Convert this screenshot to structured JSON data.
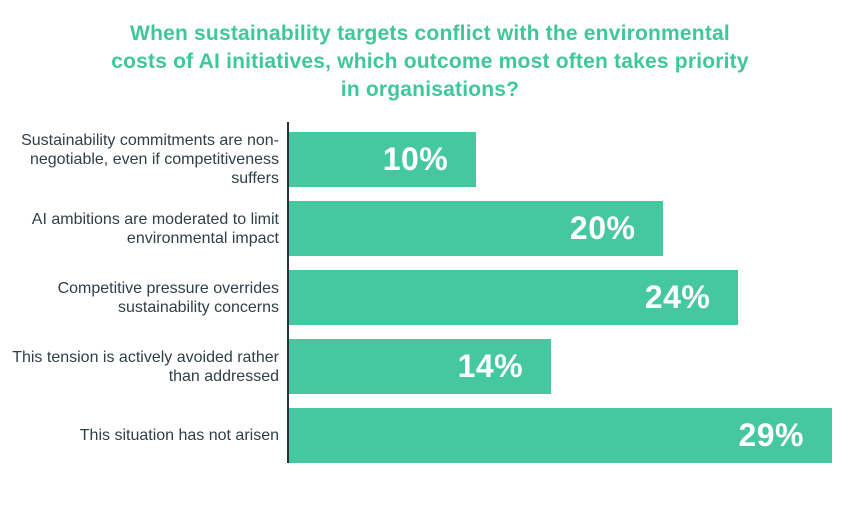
{
  "title": "When sustainability targets conflict with the environmental costs of AI initiatives, which outcome most often takes priority in organisations?",
  "title_lines": [
    "When sustainability targets conflict with the environmental",
    "costs of AI initiatives, which outcome most often takes priority",
    "in organisations?"
  ],
  "chart_data": {
    "type": "bar",
    "orientation": "horizontal",
    "title": "When sustainability targets conflict with the environmental costs of AI initiatives, which outcome most often takes priority in organisations?",
    "categories": [
      "Sustainability commitments are non- negotiable, even if competitiveness suffers",
      "AI ambitions are moderated to limit environmental impact",
      "Competitive pressure overrides sustainability concerns",
      "This tension is actively avoided rather than addressed",
      "This situation has not arisen"
    ],
    "values": [
      10,
      20,
      24,
      14,
      29
    ],
    "value_labels": [
      "10%",
      "20%",
      "24%",
      "14%",
      "29%"
    ],
    "unit": "%",
    "xlim": [
      0,
      29
    ],
    "grid": false,
    "legend": false,
    "value_label_position": "inside-right"
  },
  "colors": {
    "background": "#ffffff",
    "title_text": "#3fc79a",
    "bar_fill": "#45c89f",
    "category_text": "#2f4047",
    "axis_line": "#23313a",
    "value_text": "#ffffff"
  }
}
